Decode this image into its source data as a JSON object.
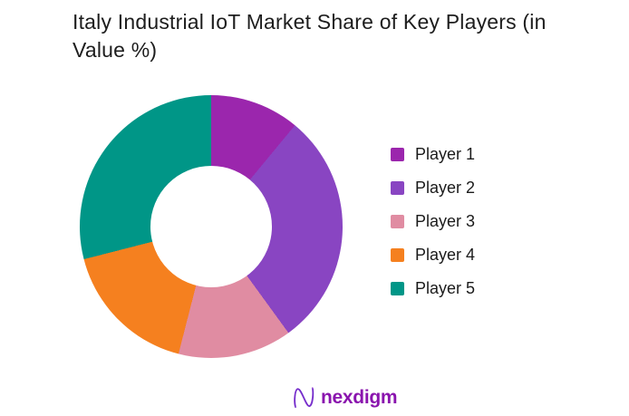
{
  "title_lines": {
    "line1": "Italy Industrial IoT Market Share of Key Players (in",
    "line2": "Value %)"
  },
  "chart_data": {
    "type": "pie",
    "subtype": "donut",
    "title": "Italy Industrial IoT Market Share of Key Players (in Value %)",
    "categories": [
      "Player 1",
      "Player 2",
      "Player 3",
      "Player 4",
      "Player 5"
    ],
    "values": [
      11,
      29,
      14,
      17,
      29
    ],
    "unit": "%",
    "colors": [
      "#9b26ad",
      "#8945c2",
      "#e08ca2",
      "#f5801f",
      "#009687"
    ],
    "start_angle_deg": 0,
    "direction": "clockwise",
    "inner_radius_ratio": 0.46,
    "legend_position": "right",
    "data_labels": "none"
  },
  "footer": {
    "brand": "nexdigm",
    "brand_color": "#8a14ae",
    "icon": "nexdigm-wave-n-icon"
  }
}
